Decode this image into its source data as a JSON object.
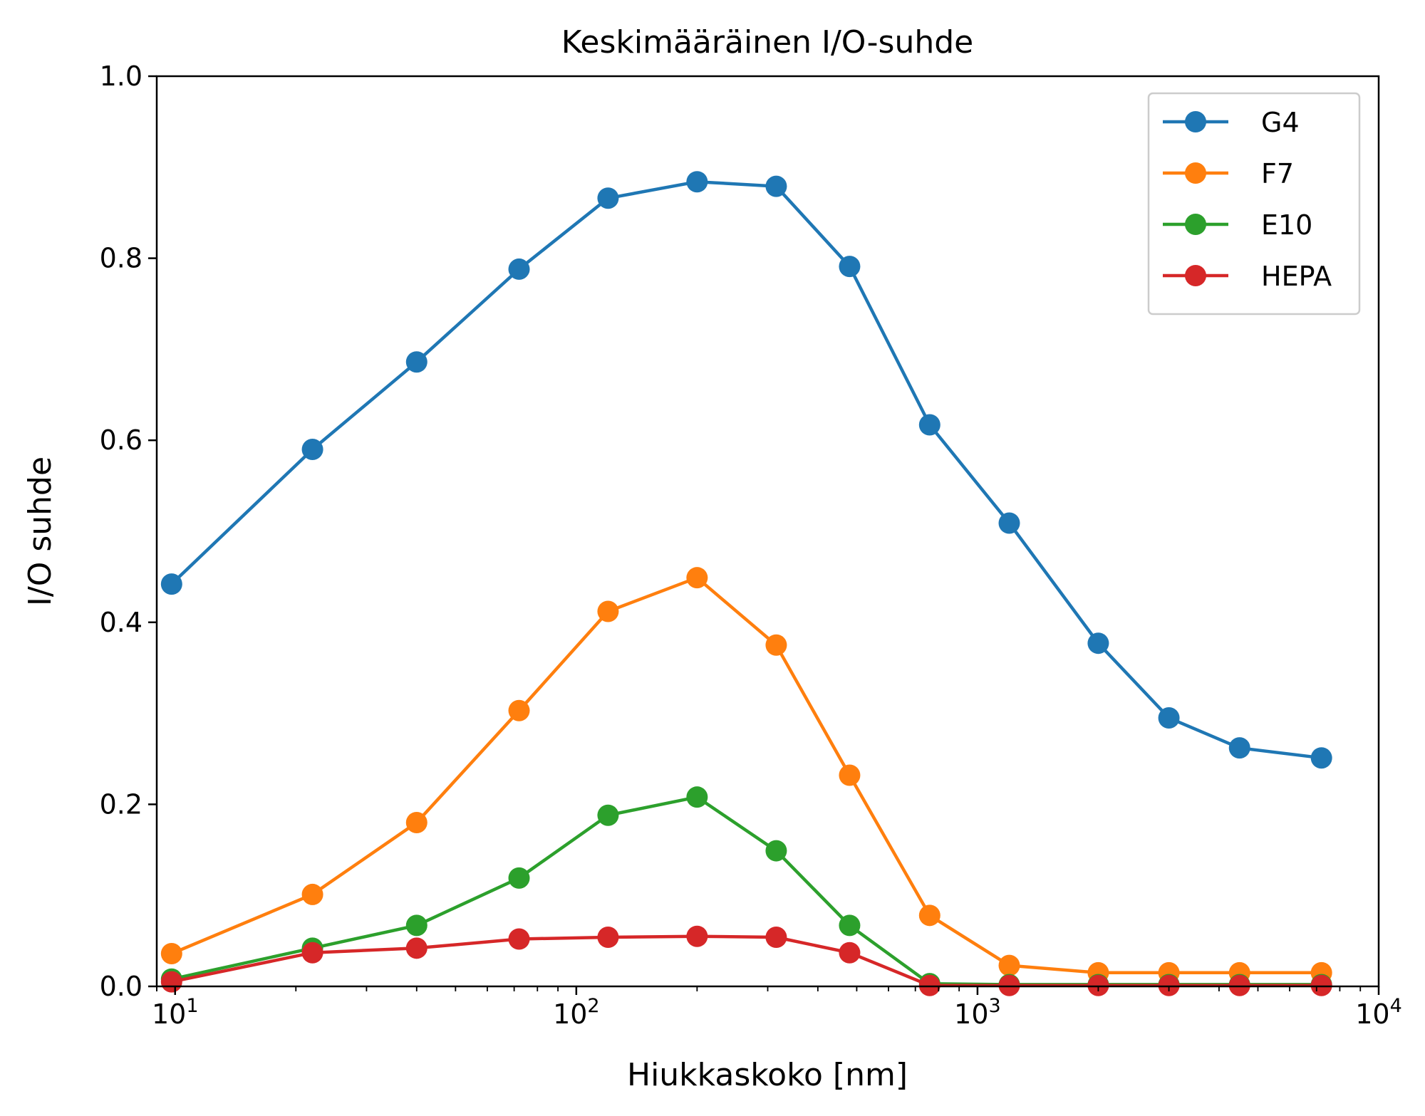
{
  "chart_data": {
    "type": "line",
    "title": "Keskimääräinen I/O-suhde",
    "xlabel": "Hiukkaskoko [nm]",
    "ylabel": "I/O suhde",
    "xscale": "log",
    "xlim": [
      9,
      10000
    ],
    "ylim": [
      0,
      1
    ],
    "x_ticks": [
      {
        "value": 10,
        "base": "10",
        "exp": "1"
      },
      {
        "value": 100,
        "base": "10",
        "exp": "2"
      },
      {
        "value": 1000,
        "base": "10",
        "exp": "3"
      },
      {
        "value": 10000,
        "base": "10",
        "exp": "4"
      }
    ],
    "y_ticks": [
      {
        "value": 0,
        "label": "0.0"
      },
      {
        "value": 0.2,
        "label": "0.2"
      },
      {
        "value": 0.4,
        "label": "0.4"
      },
      {
        "value": 0.6,
        "label": "0.6"
      },
      {
        "value": 0.8,
        "label": "0.8"
      },
      {
        "value": 1.0,
        "label": "1.0"
      }
    ],
    "grid": false,
    "legend_position": "top-right",
    "x": [
      9.8,
      22,
      40,
      72,
      120,
      200,
      315,
      480,
      760,
      1200,
      2000,
      3000,
      4500,
      7200
    ],
    "series": [
      {
        "name": "G4",
        "color": "#1f77b4",
        "values": [
          0.442,
          0.59,
          0.686,
          0.788,
          0.866,
          0.884,
          0.879,
          0.791,
          0.617,
          0.509,
          0.377,
          0.295,
          0.262,
          0.251
        ]
      },
      {
        "name": "F7",
        "color": "#ff7f0e",
        "values": [
          0.036,
          0.101,
          0.18,
          0.303,
          0.412,
          0.449,
          0.375,
          0.232,
          0.078,
          0.023,
          0.015,
          0.015,
          0.015,
          0.015
        ]
      },
      {
        "name": "E10",
        "color": "#2ca02c",
        "values": [
          0.008,
          0.042,
          0.067,
          0.119,
          0.188,
          0.208,
          0.149,
          0.067,
          0.003,
          0.002,
          0.002,
          0.002,
          0.002,
          0.002
        ]
      },
      {
        "name": "HEPA",
        "color": "#d62728",
        "values": [
          0.005,
          0.037,
          0.042,
          0.052,
          0.054,
          0.055,
          0.054,
          0.037,
          0.001,
          0.001,
          0.001,
          0.001,
          0.001,
          0.001
        ]
      }
    ]
  }
}
